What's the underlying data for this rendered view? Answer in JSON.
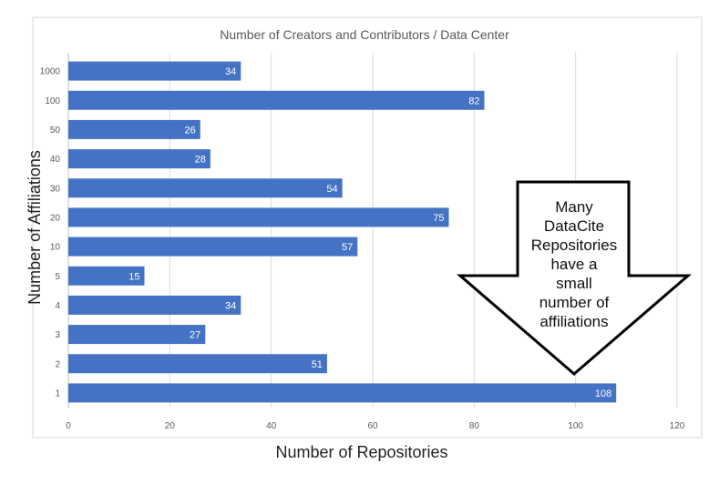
{
  "chart_data": {
    "type": "bar",
    "orientation": "horizontal",
    "title": "Number of Creators and Contributors / Data Center",
    "xlabel": "Number of Repositories",
    "ylabel": "Number of Affiliations",
    "categories": [
      "1000",
      "100",
      "50",
      "40",
      "30",
      "20",
      "10",
      "5",
      "4",
      "3",
      "2",
      "1"
    ],
    "values": [
      34,
      82,
      26,
      28,
      54,
      75,
      57,
      15,
      34,
      27,
      51,
      108
    ],
    "xlim": [
      0,
      120
    ],
    "xticks": [
      0,
      20,
      40,
      60,
      80,
      100,
      120
    ],
    "grid": true,
    "bar_color": "#4472C4",
    "annotation": {
      "lines": [
        "Many",
        "DataCite",
        "Repositories",
        "have a",
        "small",
        "number of",
        "affiliations"
      ]
    }
  }
}
